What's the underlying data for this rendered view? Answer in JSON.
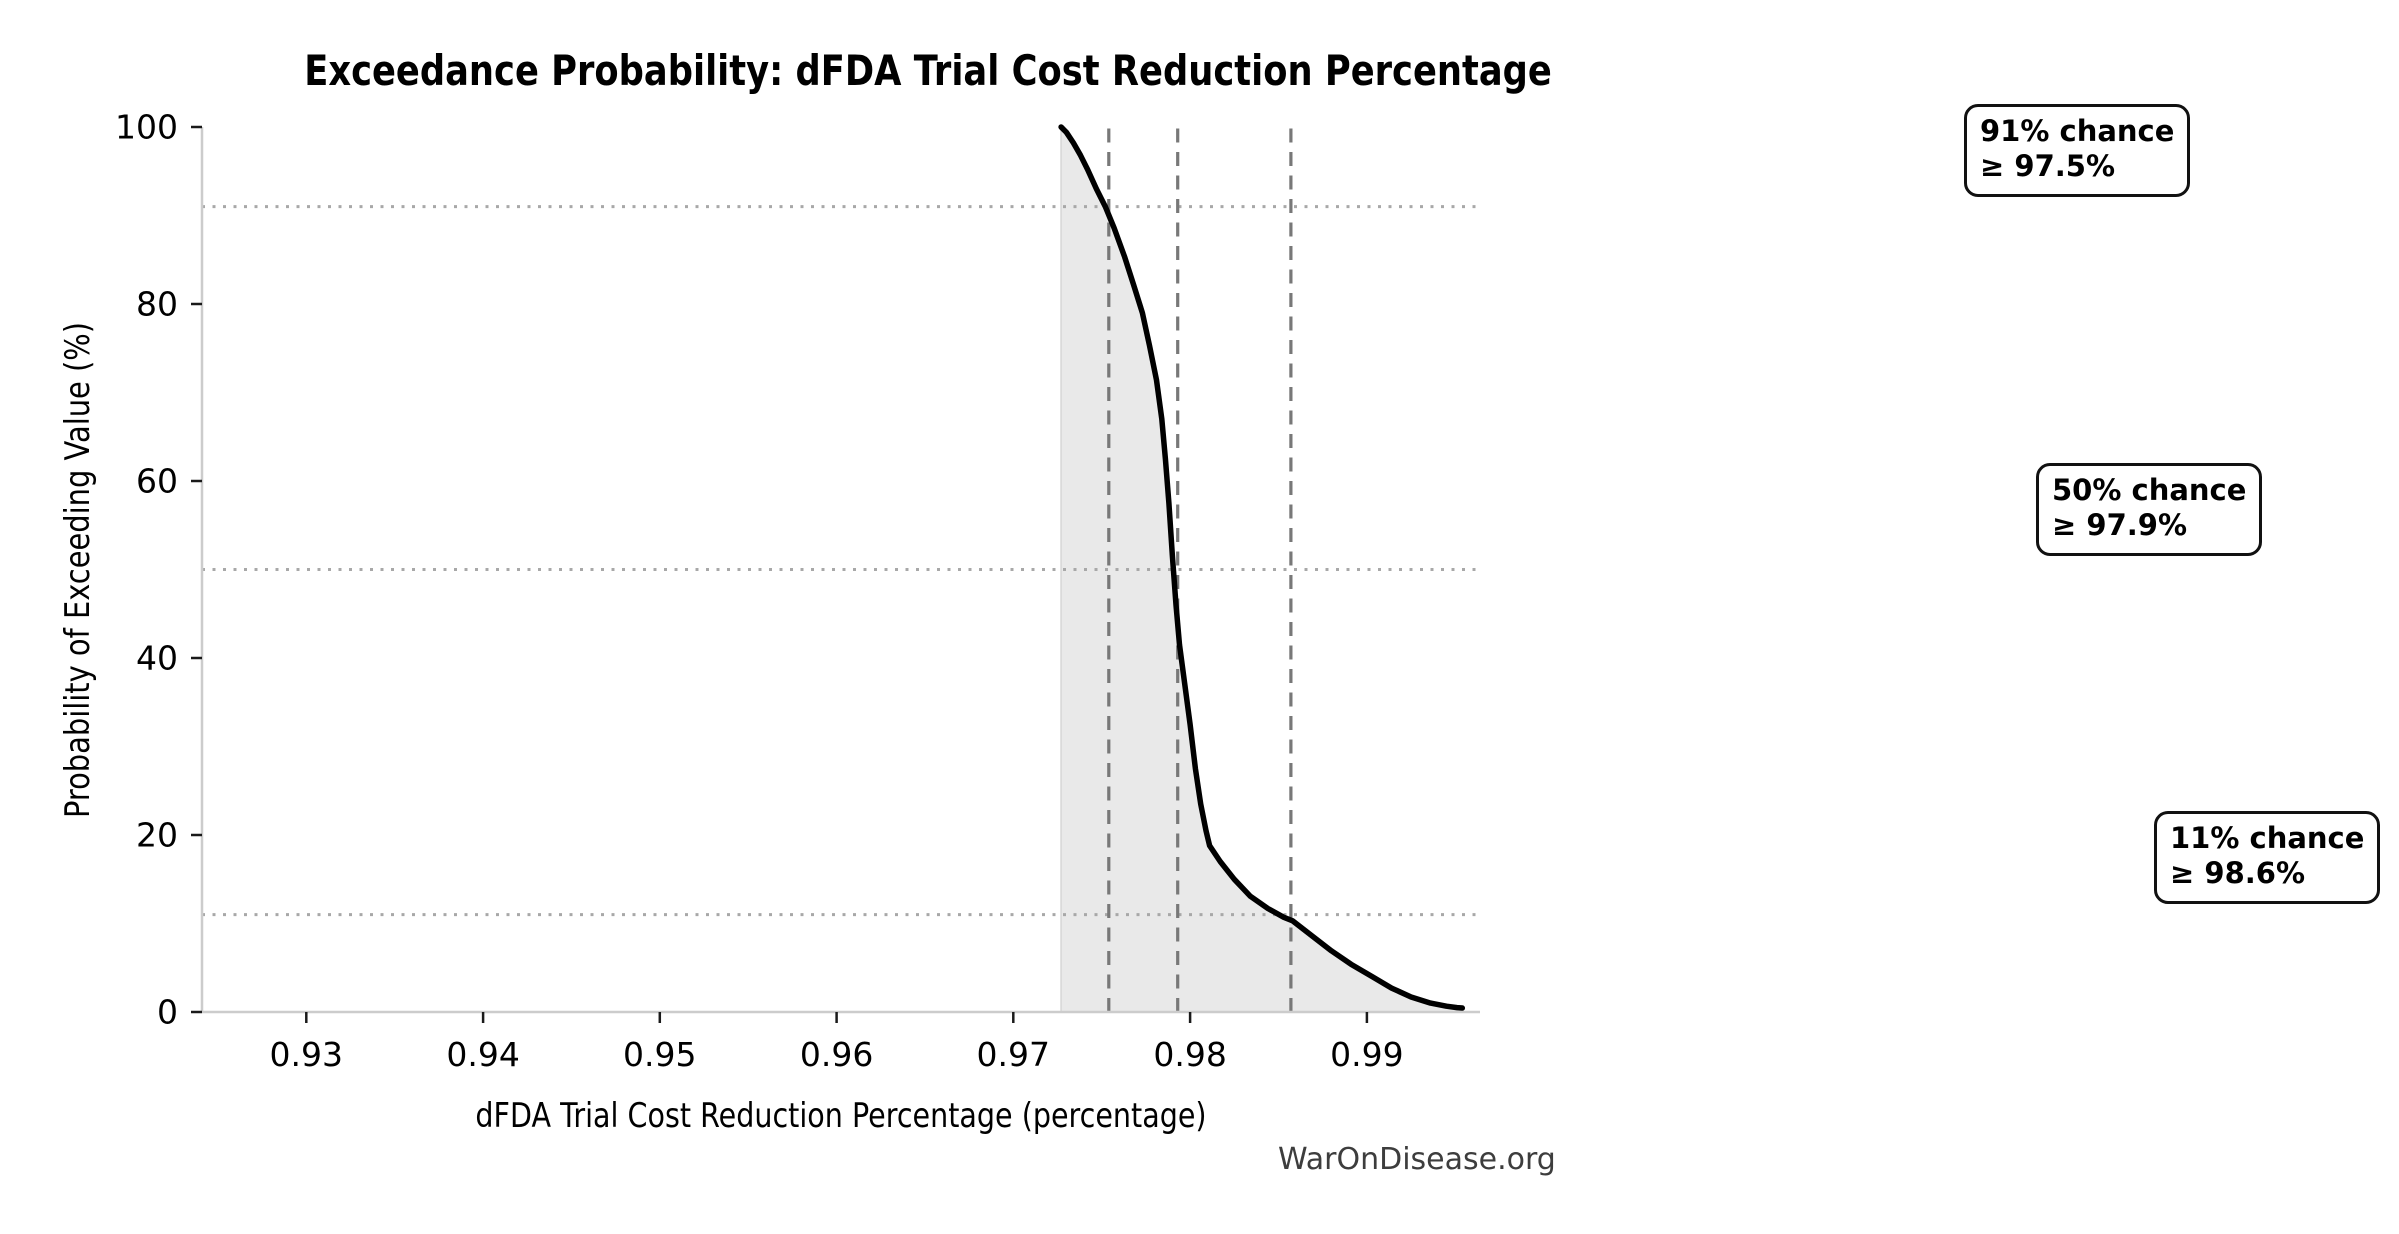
{
  "title": "Exceedance Probability: dFDA Trial Cost Reduction Percentage",
  "xlabel": "dFDA Trial Cost Reduction Percentage (percentage)",
  "ylabel": "Probability of Exceeding Value (%)",
  "watermark": "WarOnDisease.org",
  "annotations": [
    {
      "line1": "91% chance",
      "line2": "≥ 97.5%"
    },
    {
      "line1": "50% chance",
      "line2": "≥ 97.9%"
    },
    {
      "line1": "11% chance",
      "line2": "≥ 98.6%"
    }
  ],
  "chart_data": {
    "type": "area",
    "title": "Exceedance Probability: dFDA Trial Cost Reduction Percentage",
    "xlabel": "dFDA Trial Cost Reduction Percentage (percentage)",
    "ylabel": "Probability of Exceeding Value (%)",
    "xlim": [
      0.9241,
      0.9964
    ],
    "ylim": [
      0,
      100
    ],
    "x_ticks": [
      0.93,
      0.94,
      0.95,
      0.96,
      0.97,
      0.98,
      0.99
    ],
    "x_tick_labels": [
      "0.93",
      "0.94",
      "0.95",
      "0.96",
      "0.97",
      "0.98",
      "0.99"
    ],
    "y_ticks": [
      0,
      20,
      40,
      60,
      80,
      100
    ],
    "y_tick_labels": [
      "0",
      "20",
      "40",
      "60",
      "80",
      "100"
    ],
    "grid": "off",
    "legend": "none",
    "line_color": "#000000",
    "fill_color": "#e9e9e9",
    "vline_color": "#787878",
    "hline_color": "#a8a8a8",
    "spine_color": "#cccccc",
    "tick_color": "#1a1a1a",
    "vlines": [
      0.9754,
      0.9793,
      0.9857
    ],
    "hlines": [
      91,
      50,
      11
    ],
    "percentile_markers": [
      {
        "exceed_probability_pct": 91,
        "threshold": 0.975
      },
      {
        "exceed_probability_pct": 50,
        "threshold": 0.979
      },
      {
        "exceed_probability_pct": 11,
        "threshold": 0.986
      }
    ],
    "series": [
      {
        "name": "Exceedance probability curve",
        "points": [
          [
            0.9727,
            100
          ],
          [
            0.973,
            99.4
          ],
          [
            0.9734,
            98.2
          ],
          [
            0.9738,
            96.8
          ],
          [
            0.9742,
            95.2
          ],
          [
            0.9747,
            93.0
          ],
          [
            0.9752,
            91.0
          ],
          [
            0.9757,
            88.6
          ],
          [
            0.9763,
            85.3
          ],
          [
            0.9768,
            82.2
          ],
          [
            0.9773,
            79.0
          ],
          [
            0.9777,
            75.3
          ],
          [
            0.9781,
            71.4
          ],
          [
            0.9784,
            67.0
          ],
          [
            0.9786,
            62.5
          ],
          [
            0.9788,
            57.5
          ],
          [
            0.979,
            51.5
          ],
          [
            0.9792,
            46.0
          ],
          [
            0.9794,
            41.5
          ],
          [
            0.9797,
            37.0
          ],
          [
            0.98,
            32.5
          ],
          [
            0.9803,
            27.5
          ],
          [
            0.9806,
            23.5
          ],
          [
            0.9809,
            20.5
          ],
          [
            0.9811,
            18.8
          ],
          [
            0.9817,
            17.0
          ],
          [
            0.9825,
            15.0
          ],
          [
            0.9834,
            13.1
          ],
          [
            0.9844,
            11.7
          ],
          [
            0.9853,
            10.7
          ],
          [
            0.9858,
            10.3
          ],
          [
            0.9869,
            8.6
          ],
          [
            0.988,
            6.9
          ],
          [
            0.9891,
            5.4
          ],
          [
            0.9903,
            4.0
          ],
          [
            0.9914,
            2.7
          ],
          [
            0.9925,
            1.7
          ],
          [
            0.9936,
            1.0
          ],
          [
            0.9945,
            0.65
          ],
          [
            0.9951,
            0.5
          ],
          [
            0.9954,
            0.45
          ]
        ]
      }
    ]
  }
}
